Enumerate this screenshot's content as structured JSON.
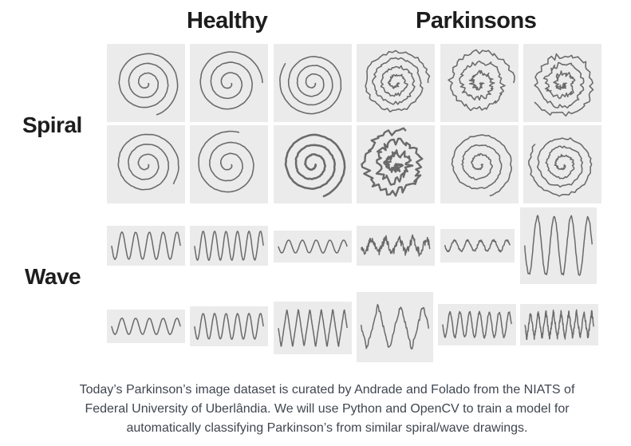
{
  "headers": {
    "healthy": "Healthy",
    "parkinsons": "Parkinsons"
  },
  "row_labels": {
    "spiral": "Spiral",
    "wave": "Wave"
  },
  "caption": {
    "line1": "Today’s Parkinson’s image dataset is curated by Andrade and Folado from the NIATS of",
    "line2": "Federal University of Uberlândia. We will use Python and OpenCV to train a model for",
    "line3": "automatically classifying Parkinson’s from similar spiral/wave drawings."
  },
  "colors": {
    "tile_bg": "#ebebeb",
    "stroke": "#6a6a6a",
    "text": "#1d1d1d",
    "caption": "#404650"
  }
}
